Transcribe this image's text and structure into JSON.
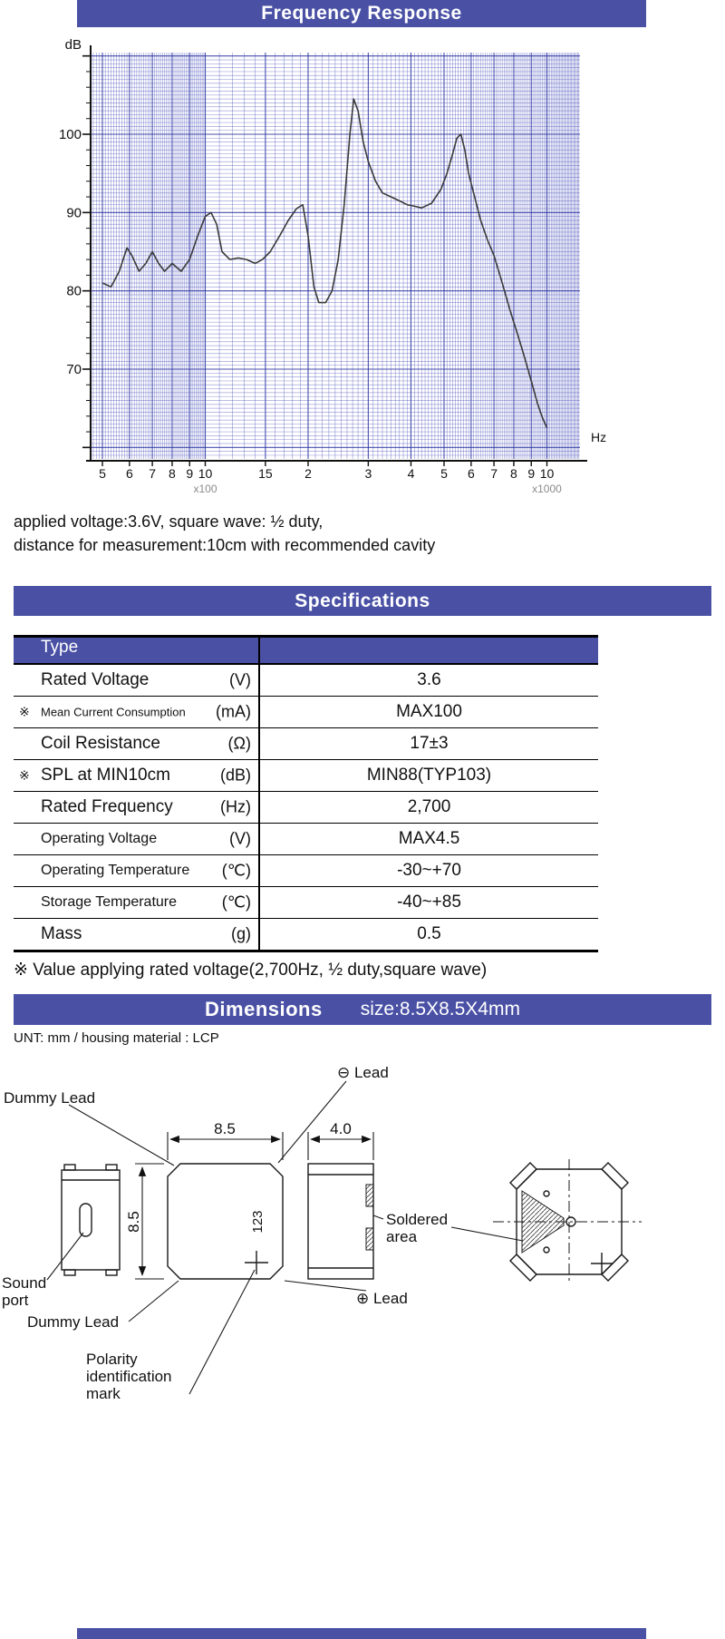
{
  "accent_color": "#4a51a5",
  "frequency_response": {
    "title": "Frequency Response"
  },
  "chart_data": {
    "type": "line",
    "title": "Frequency Response",
    "xlabel": "Hz",
    "ylabel": "dB",
    "x_scale": "log",
    "xlim": [
      500,
      10000
    ],
    "ylim": [
      58,
      110
    ],
    "yticks": [
      100,
      90,
      80,
      70
    ],
    "xticks": [
      {
        "f": 500,
        "label": "5"
      },
      {
        "f": 600,
        "label": "6"
      },
      {
        "f": 700,
        "label": "7"
      },
      {
        "f": 800,
        "label": "8"
      },
      {
        "f": 900,
        "label": "9"
      },
      {
        "f": 1000,
        "label": "10"
      },
      {
        "f": 1500,
        "label": "15"
      },
      {
        "f": 2000,
        "label": "2"
      },
      {
        "f": 3000,
        "label": "3"
      },
      {
        "f": 4000,
        "label": "4"
      },
      {
        "f": 5000,
        "label": "5"
      },
      {
        "f": 6000,
        "label": "6"
      },
      {
        "f": 7000,
        "label": "7"
      },
      {
        "f": 8000,
        "label": "8"
      },
      {
        "f": 9000,
        "label": "9"
      },
      {
        "f": 10000,
        "label": "10"
      }
    ],
    "x100_label": "x100",
    "x1000_label": "x1000",
    "major_freqs": [
      500,
      600,
      700,
      800,
      900,
      1000,
      1500,
      2000,
      3000,
      4000,
      5000,
      6000,
      7000,
      8000,
      9000,
      10000
    ],
    "grid_major_color": "rgba(40,48,160,0.85)",
    "grid_minor_color": "rgba(70,78,185,0.5)",
    "line_color": "#3a3a3a",
    "x": [
      500,
      530,
      560,
      590,
      610,
      640,
      670,
      700,
      730,
      760,
      800,
      850,
      900,
      950,
      1000,
      1040,
      1080,
      1120,
      1180,
      1250,
      1320,
      1400,
      1470,
      1550,
      1650,
      1750,
      1850,
      1930,
      2000,
      2080,
      2150,
      2250,
      2350,
      2450,
      2550,
      2650,
      2720,
      2800,
      2900,
      3000,
      3150,
      3300,
      3500,
      3700,
      3900,
      4100,
      4300,
      4600,
      4900,
      5100,
      5300,
      5450,
      5600,
      5750,
      5900,
      6100,
      6400,
      6700,
      7000,
      7400,
      7800,
      8200,
      8600,
      9000,
      9400,
      9700,
      10000
    ],
    "y": [
      81,
      80.5,
      82.5,
      85.5,
      84.5,
      82.5,
      83.5,
      85,
      83.5,
      82.5,
      83.5,
      82.5,
      84,
      87,
      89.5,
      90,
      88.5,
      85,
      84,
      84.2,
      84,
      83.5,
      84,
      85,
      87,
      89,
      90.5,
      91,
      87,
      80.5,
      78.5,
      78.5,
      80,
      84,
      91,
      100,
      104.5,
      103,
      99,
      96.5,
      94,
      92.5,
      92,
      91.5,
      91,
      90.8,
      90.6,
      91.2,
      93,
      95,
      97.5,
      99.5,
      100,
      98,
      95,
      92.5,
      89,
      86.5,
      84.5,
      81,
      77.5,
      74.5,
      71.5,
      68.5,
      65.5,
      63.8,
      62.5
    ]
  },
  "conditions": {
    "line1": "applied voltage:3.6V, square wave: ½ duty,",
    "line2": "distance for measurement:10cm with recommended cavity"
  },
  "specifications": {
    "title": "Specifications",
    "type_header": "Type",
    "rows": [
      {
        "star": "",
        "name": "Rated Voltage",
        "unit": "(V)",
        "value": "3.6"
      },
      {
        "star": "※",
        "name": "Mean Current Consumption",
        "unit": "(mA)",
        "value": "MAX100"
      },
      {
        "star": "",
        "name": "Coil Resistance",
        "unit": "(Ω)",
        "value": "17±3"
      },
      {
        "star": "※",
        "name": "SPL at MIN10cm",
        "unit": "(dB)",
        "value": "MIN88(TYP103)"
      },
      {
        "star": "",
        "name": "Rated Frequency",
        "unit": "(Hz)",
        "value": "2,700"
      },
      {
        "star": "",
        "name": "Operating Voltage",
        "unit": "(V)",
        "value": "MAX4.5"
      },
      {
        "star": "",
        "name": "Operating Temperature",
        "unit": "(℃)",
        "value": "-30~+70"
      },
      {
        "star": "",
        "name": "Storage Temperature",
        "unit": "(℃)",
        "value": "-40~+85"
      },
      {
        "star": "",
        "name": "Mass",
        "unit": "(g)",
        "value": "0.5"
      }
    ],
    "note": "※ Value applying rated voltage(2,700Hz, ½ duty,square wave)"
  },
  "dimensions": {
    "title": "Dimensions",
    "size_label": "size:8.5X8.5X4mm",
    "materials_note": "UNT: mm  /  housing material : LCP",
    "labels": {
      "dummy_lead_top": "Dummy  Lead",
      "dummy_lead_bottom": "Dummy Lead",
      "lead_minus": "⊖ Lead",
      "lead_plus": "⊕ Lead",
      "dim_width": "8.5",
      "dim_height": "8.5",
      "dim_depth": "4.0",
      "marking": "123",
      "sound_port": [
        "Sound",
        "port"
      ],
      "soldered_area": [
        "Soldered",
        "area"
      ],
      "polarity": [
        "Polarity",
        "identification",
        "mark"
      ]
    }
  }
}
